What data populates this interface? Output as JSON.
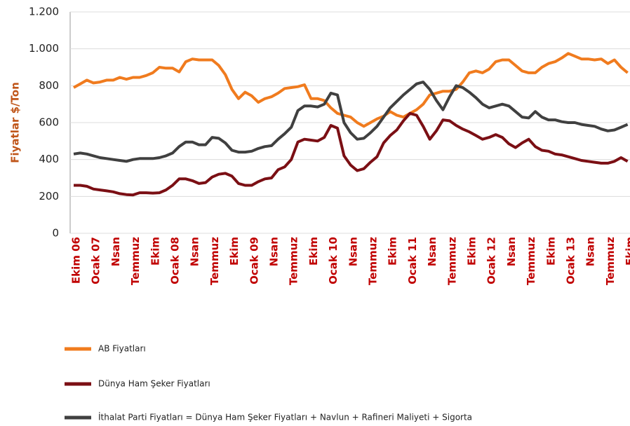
{
  "chart_data": {
    "type": "line",
    "ylabel": "Fiyatlar $/Ton",
    "categories": [
      "Ekim  06",
      null,
      null,
      "Ocak 07",
      null,
      null,
      "Nsan",
      null,
      null,
      "Temmuz",
      null,
      null,
      "Ekim",
      null,
      null,
      "Ocak 08",
      null,
      null,
      "Nsan",
      null,
      null,
      "Temmuz",
      null,
      null,
      "Ekim",
      null,
      null,
      "Ocak 09",
      null,
      null,
      "Nsan",
      null,
      null,
      "Temmuz",
      null,
      null,
      "Ekim",
      null,
      null,
      "Ocak 10",
      null,
      null,
      "Nsan",
      null,
      null,
      "Temmuz",
      null,
      null,
      "Ekim",
      null,
      null,
      "Ocak 11",
      null,
      null,
      "Nsan",
      null,
      null,
      "Temmuz",
      null,
      null,
      "Ekim",
      null,
      null,
      "Ocak 12",
      null,
      null,
      "Nsan",
      null,
      null,
      "Temmuz",
      null,
      null,
      "Ekim",
      null,
      null,
      "Ocak 13",
      null,
      null,
      "Nsan",
      null,
      null,
      "Temmuz",
      null,
      null,
      "Ekim"
    ],
    "series": [
      {
        "name": "AB Fiyatları",
        "color": "#f07b1e",
        "values": [
          790,
          810,
          830,
          815,
          820,
          830,
          830,
          845,
          835,
          845,
          845,
          855,
          870,
          900,
          895,
          895,
          875,
          930,
          945,
          940,
          940,
          940,
          910,
          860,
          780,
          730,
          765,
          745,
          710,
          730,
          740,
          760,
          785,
          790,
          795,
          805,
          730,
          730,
          720,
          680,
          650,
          640,
          630,
          600,
          580,
          600,
          620,
          635,
          660,
          640,
          630,
          650,
          670,
          700,
          750,
          760,
          770,
          770,
          780,
          820,
          870,
          880,
          870,
          890,
          930,
          940,
          940,
          910,
          880,
          870,
          870,
          900,
          920,
          930,
          950,
          975,
          960,
          945,
          945,
          940,
          945,
          920,
          940,
          900,
          870
        ]
      },
      {
        "name": "Dünya Ham Şeker Fiyatları",
        "color": "#7b0f14",
        "values": [
          260,
          260,
          255,
          240,
          235,
          230,
          225,
          215,
          210,
          208,
          220,
          220,
          218,
          220,
          235,
          260,
          295,
          295,
          285,
          270,
          275,
          305,
          320,
          325,
          310,
          270,
          260,
          260,
          280,
          295,
          300,
          345,
          360,
          400,
          495,
          510,
          505,
          500,
          520,
          585,
          570,
          420,
          370,
          340,
          350,
          385,
          415,
          490,
          530,
          560,
          610,
          650,
          640,
          580,
          510,
          555,
          615,
          610,
          585,
          565,
          550,
          530,
          510,
          520,
          535,
          520,
          485,
          465,
          490,
          510,
          470,
          450,
          445,
          430,
          425,
          415,
          405,
          395,
          390,
          385,
          380,
          380,
          390,
          410,
          390
        ]
      },
      {
        "name": "İthalat Parti Fiyatları = Dünya Ham Şeker Fiyatları + Navlun + Rafineri Maliyeti + Sigorta",
        "color": "#404040",
        "values": [
          430,
          435,
          430,
          420,
          410,
          405,
          400,
          395,
          390,
          400,
          405,
          405,
          405,
          410,
          420,
          435,
          470,
          495,
          495,
          480,
          480,
          520,
          515,
          490,
          450,
          440,
          440,
          445,
          460,
          470,
          475,
          510,
          540,
          575,
          665,
          690,
          690,
          685,
          700,
          760,
          750,
          600,
          545,
          510,
          515,
          545,
          580,
          630,
          680,
          715,
          750,
          780,
          810,
          820,
          780,
          720,
          670,
          740,
          800,
          790,
          765,
          735,
          700,
          680,
          690,
          700,
          690,
          660,
          630,
          625,
          660,
          630,
          615,
          615,
          605,
          600,
          600,
          590,
          585,
          580,
          565,
          555,
          560,
          575,
          590
        ]
      }
    ],
    "ylim": [
      0,
      1200
    ],
    "yticks": [
      0,
      200,
      400,
      600,
      800,
      {
        "value": 1000,
        "label": "1.000"
      },
      {
        "value": 1200,
        "label": "1.200"
      }
    ],
    "grid": true
  }
}
